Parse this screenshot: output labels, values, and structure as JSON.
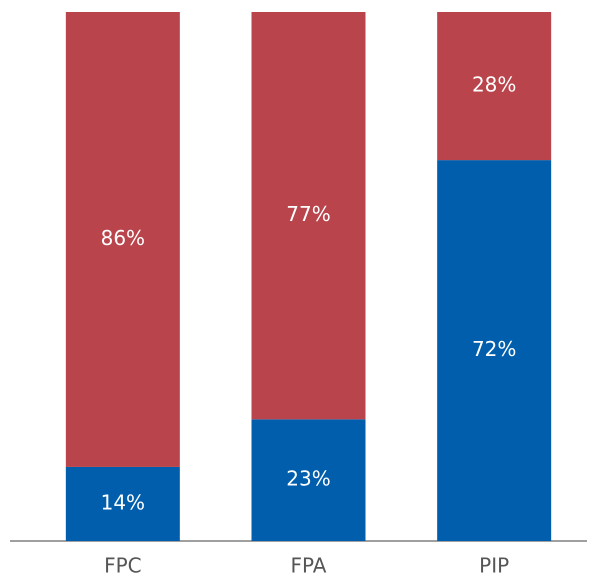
{
  "chart_data": {
    "type": "stacked_bar",
    "categories": [
      "FPC",
      "FPA",
      "PIP"
    ],
    "series": [
      {
        "color": "#005eac",
        "values": [
          14,
          23,
          72
        ],
        "value_labels": [
          "14%",
          "23%",
          "72%"
        ]
      },
      {
        "color": "#b9444c",
        "values": [
          86,
          77,
          28
        ],
        "value_labels": [
          "86%",
          "77%",
          "28%"
        ]
      }
    ],
    "ylim": [
      0,
      100
    ]
  }
}
